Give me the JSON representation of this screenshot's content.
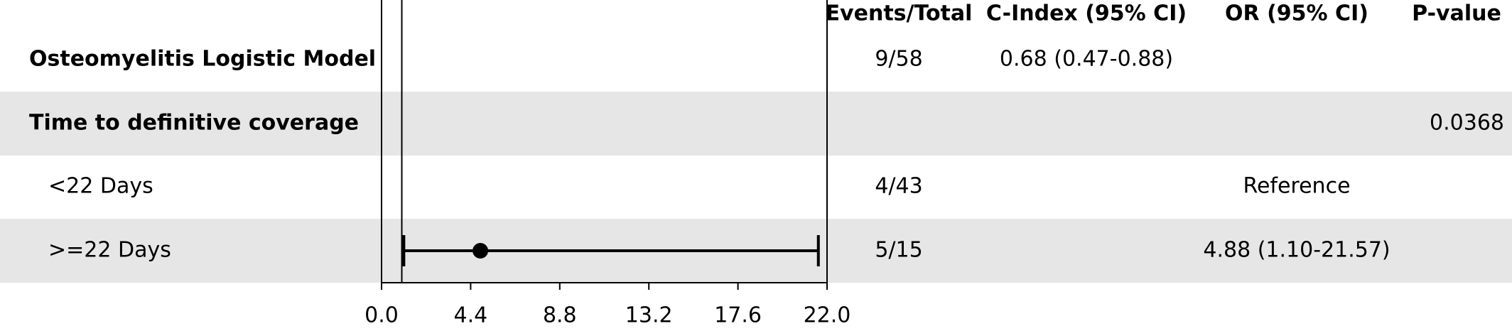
{
  "chart_data": {
    "type": "forest",
    "columns": {
      "events": "Events/Total",
      "c_index": "C-Index (95% CI)",
      "or": "OR (95% CI)",
      "p_value": "P-value"
    },
    "rows": [
      {
        "label": "Osteomyelitis Logistic Model",
        "bold": true,
        "events": "9/58",
        "c_index": "0.68 (0.47-0.88)"
      },
      {
        "label": "Time to definitive coverage",
        "bold": true,
        "p_value": "0.0368"
      },
      {
        "label": "<22 Days",
        "events": "4/43",
        "or": "Reference"
      },
      {
        "label": ">=22 Days",
        "events": "5/15",
        "or": "4.88 (1.10-21.57)",
        "estimate": 4.88,
        "lower": 1.1,
        "upper": 21.57
      }
    ],
    "reference_line": 1,
    "xlim": [
      0,
      22
    ],
    "xticks": [
      {
        "value": 0,
        "label": "0.0"
      },
      4.4,
      8.8,
      13.2,
      17.6,
      {
        "value": 22,
        "label": "22.0"
      }
    ]
  }
}
